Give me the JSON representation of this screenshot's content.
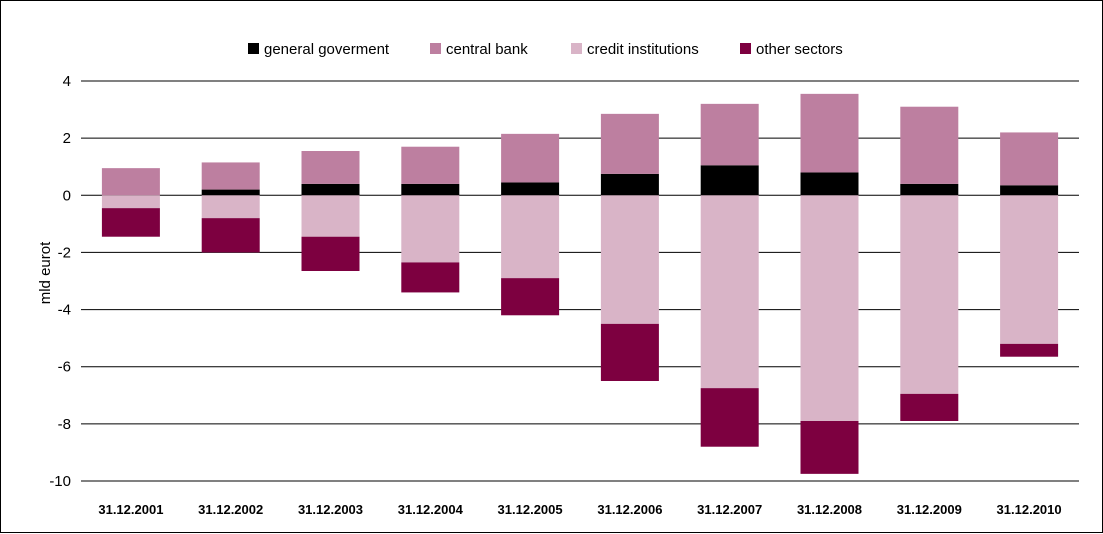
{
  "chart_data": {
    "type": "bar",
    "stacked": true,
    "title": "",
    "xlabel": "",
    "ylabel": "mld eurot",
    "ylim": [
      -10,
      4
    ],
    "yticks": [
      4,
      2,
      0,
      -2,
      -4,
      -6,
      -8,
      -10
    ],
    "grid": true,
    "legend_position": "top",
    "categories": [
      "31.12.2001",
      "31.12.2002",
      "31.12.2003",
      "31.12.2004",
      "31.12.2005",
      "31.12.2006",
      "31.12.2007",
      "31.12.2008",
      "31.12.2009",
      "31.12.2010"
    ],
    "series": [
      {
        "name": "general goverment",
        "color": "#000000",
        "values": [
          0,
          0.2,
          0.4,
          0.4,
          0.45,
          0.75,
          1.05,
          0.8,
          0.4,
          0.35
        ]
      },
      {
        "name": "central bank",
        "color": "#bd7fa0",
        "values": [
          0.95,
          0.95,
          1.15,
          1.3,
          1.7,
          2.1,
          2.15,
          2.75,
          2.7,
          1.85
        ]
      },
      {
        "name": "credit institutions",
        "color": "#d9b4c7",
        "values": [
          -0.45,
          -0.8,
          -1.45,
          -2.35,
          -2.9,
          -4.5,
          -6.75,
          -7.9,
          -6.95,
          -5.2
        ]
      },
      {
        "name": "other sectors",
        "color": "#7d0040",
        "values": [
          -1.0,
          -1.2,
          -1.2,
          -1.05,
          -1.3,
          -2.0,
          -2.05,
          -1.85,
          -0.95,
          -0.45
        ]
      }
    ]
  }
}
